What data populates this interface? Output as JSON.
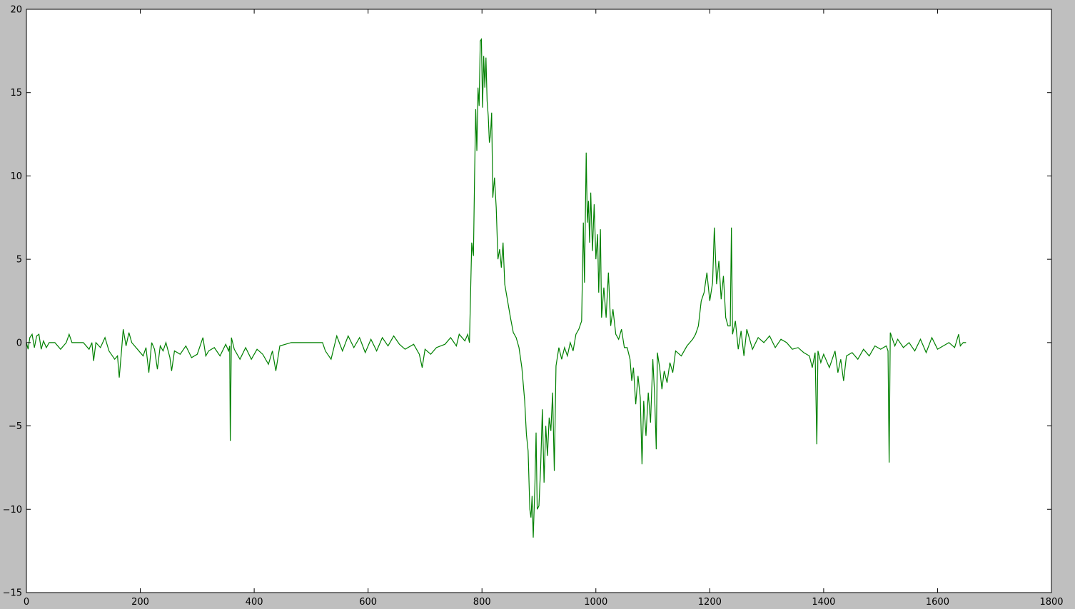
{
  "chart_data": {
    "type": "line",
    "series": [
      {
        "color": "#008000",
        "x": [
          0,
          3,
          6,
          10,
          14,
          18,
          22,
          26,
          30,
          35,
          40,
          50,
          60,
          70,
          75,
          80,
          100,
          110,
          115,
          118,
          122,
          130,
          138,
          145,
          155,
          160,
          163,
          167,
          170,
          175,
          180,
          185,
          195,
          205,
          210,
          215,
          220,
          225,
          230,
          235,
          240,
          245,
          252,
          255,
          260,
          270,
          280,
          290,
          300,
          310,
          315,
          320,
          330,
          340,
          350,
          355,
          357,
          358,
          360,
          365,
          375,
          385,
          395,
          405,
          415,
          425,
          432,
          438,
          445,
          455,
          465,
          480,
          500,
          520,
          525,
          535,
          545,
          555,
          565,
          575,
          585,
          595,
          605,
          615,
          625,
          635,
          645,
          655,
          665,
          680,
          690,
          695,
          700,
          710,
          720,
          735,
          745,
          755,
          760,
          770,
          775,
          778,
          780,
          782,
          785,
          787,
          789,
          791,
          793,
          795,
          797,
          799,
          801,
          803,
          805,
          807,
          809,
          811,
          813,
          815,
          817,
          819,
          822,
          825,
          828,
          831,
          834,
          837,
          840,
          845,
          850,
          855,
          860,
          865,
          870,
          875,
          878,
          881,
          884,
          886,
          888,
          890,
          893,
          895,
          897,
          900,
          903,
          906,
          909,
          912,
          915,
          918,
          921,
          924,
          927,
          930,
          935,
          940,
          945,
          950,
          955,
          960,
          965,
          970,
          975,
          978,
          980,
          983,
          985,
          987,
          989,
          991,
          994,
          997,
          1000,
          1003,
          1005,
          1008,
          1010,
          1014,
          1018,
          1022,
          1026,
          1030,
          1035,
          1040,
          1045,
          1050,
          1055,
          1060,
          1063,
          1066,
          1070,
          1074,
          1078,
          1081,
          1084,
          1088,
          1092,
          1096,
          1100,
          1103,
          1106,
          1108,
          1112,
          1116,
          1120,
          1125,
          1130,
          1135,
          1140,
          1150,
          1160,
          1170,
          1175,
          1180,
          1185,
          1190,
          1195,
          1200,
          1205,
          1208,
          1212,
          1216,
          1220,
          1224,
          1228,
          1232,
          1236,
          1238,
          1240,
          1245,
          1250,
          1255,
          1260,
          1265,
          1275,
          1285,
          1295,
          1305,
          1315,
          1325,
          1335,
          1345,
          1355,
          1365,
          1375,
          1380,
          1385,
          1388,
          1390,
          1395,
          1400,
          1410,
          1420,
          1425,
          1430,
          1435,
          1440,
          1450,
          1460,
          1470,
          1480,
          1490,
          1500,
          1510,
          1513,
          1515,
          1517,
          1520,
          1525,
          1530,
          1540,
          1550,
          1560,
          1570,
          1580,
          1590,
          1600,
          1610,
          1620,
          1630,
          1637,
          1640,
          1645,
          1650
        ],
        "values": [
          0,
          -0.4,
          0.3,
          0.5,
          -0.3,
          0.4,
          0.5,
          -0.4,
          0.1,
          -0.3,
          0,
          0,
          -0.4,
          0,
          0.5,
          0,
          0,
          -0.4,
          0,
          -1.1,
          0,
          -0.3,
          0.3,
          -0.5,
          -1.0,
          -0.8,
          -2.1,
          -0.5,
          0.8,
          -0.2,
          0.6,
          0,
          -0.4,
          -0.8,
          -0.3,
          -1.8,
          0,
          -0.4,
          -1.6,
          -0.2,
          -0.5,
          0,
          -0.9,
          -1.7,
          -0.5,
          -0.7,
          -0.2,
          -0.9,
          -0.7,
          0.3,
          -0.8,
          -0.5,
          -0.3,
          -0.8,
          -0.1,
          -0.5,
          -0.2,
          -5.9,
          0.3,
          -0.4,
          -1.0,
          -0.3,
          -1.0,
          -0.4,
          -0.7,
          -1.3,
          -0.5,
          -1.7,
          -0.2,
          -0.1,
          0,
          0,
          0,
          0,
          -0.5,
          -1.0,
          0.4,
          -0.5,
          0.4,
          -0.3,
          0.3,
          -0.6,
          0.2,
          -0.5,
          0.3,
          -0.2,
          0.4,
          -0.1,
          -0.4,
          -0.1,
          -0.7,
          -1.5,
          -0.4,
          -0.7,
          -0.3,
          -0.1,
          0.3,
          -0.2,
          0.5,
          0.1,
          0.5,
          0,
          3.0,
          6.0,
          5.2,
          10,
          14,
          11.5,
          15.3,
          14.2,
          18.1,
          18.2,
          14.1,
          17.2,
          15.3,
          17.1,
          14.5,
          13.6,
          12.0,
          12.5,
          13.8,
          8.7,
          9.9,
          8.1,
          5.0,
          5.6,
          4.5,
          6.0,
          3.5,
          2.5,
          1.5,
          0.6,
          0.3,
          -0.3,
          -1.5,
          -3.5,
          -5.5,
          -6.5,
          -10,
          -10.5,
          -9.2,
          -11.7,
          -8.5,
          -5.4,
          -10,
          -9.8,
          -7.5,
          -4,
          -8.4,
          -5,
          -6.8,
          -4.5,
          -5.3,
          -3,
          -7.7,
          -1.4,
          -0.3,
          -1.0,
          -0.3,
          -0.8,
          0,
          -0.5,
          0.5,
          0.8,
          1.3,
          7.2,
          3.6,
          11.4,
          7.2,
          8.5,
          6.0,
          9.0,
          5.5,
          8.3,
          5.0,
          6.5,
          3.0,
          6.8,
          1.5,
          3.3,
          1.5,
          4.2,
          1.0,
          2.0,
          0.5,
          0.2,
          0.8,
          -0.3,
          -0.3,
          -1,
          -2.3,
          -1.5,
          -3.7,
          -2.0,
          -3.3,
          -7.3,
          -3.5,
          -5.6,
          -3.0,
          -4.8,
          -1.0,
          -3.0,
          -6.4,
          -0.6,
          -1.5,
          -2.8,
          -1.7,
          -2.4,
          -1.2,
          -1.8,
          -0.5,
          -0.8,
          -0.2,
          0.2,
          0.5,
          1.0,
          2.5,
          3.0,
          4.2,
          2.5,
          3.6,
          6.9,
          3.5,
          4.9,
          2.6,
          4.0,
          1.5,
          1.0,
          1.0,
          6.9,
          0.5,
          1.3,
          -0.4,
          0.7,
          -0.8,
          0.8,
          -0.4,
          0.3,
          0,
          0.4,
          -0.3,
          0.2,
          0,
          -0.4,
          -0.3,
          -0.6,
          -0.8,
          -1.5,
          -0.6,
          -6.1,
          -0.5,
          -1.2,
          -0.7,
          -1.5,
          -0.5,
          -1.8,
          -1.0,
          -2.3,
          -0.8,
          -0.6,
          -1.0,
          -0.4,
          -0.8,
          -0.2,
          -0.4,
          -0.2,
          -0.5,
          -7.2,
          0.6,
          0.3,
          -0.2,
          0.2,
          -0.3,
          0,
          -0.5,
          0.2,
          -0.6,
          0.3,
          -0.4,
          -0.2,
          0,
          -0.3,
          0.5,
          -0.2,
          0,
          0
        ]
      }
    ],
    "xlim": [
      0,
      1800
    ],
    "xticks": [
      0,
      200,
      400,
      600,
      800,
      1000,
      1200,
      1400,
      1600,
      1800
    ],
    "ylim": [
      -15,
      20
    ],
    "yticks": [
      {
        "value": -15,
        "label": "−15"
      },
      {
        "value": -10,
        "label": "−10"
      },
      {
        "value": -5,
        "label": "−5"
      },
      0,
      5,
      10,
      15,
      20
    ]
  }
}
